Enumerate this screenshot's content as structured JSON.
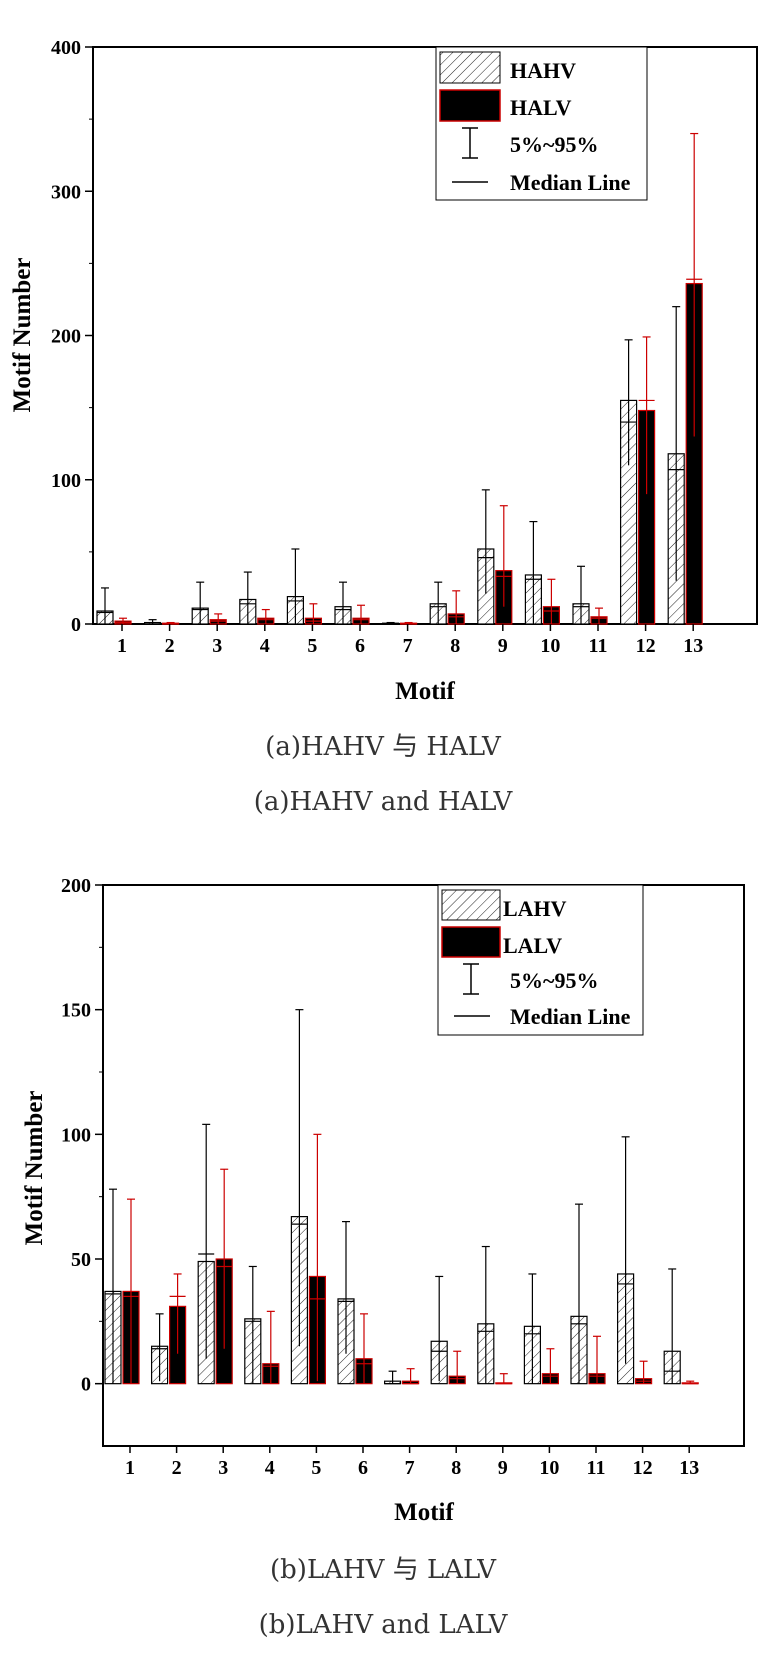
{
  "chart_data": [
    {
      "type": "bar",
      "xlabel": "Motif",
      "ylabel": "Motif Number",
      "ylim": [
        0,
        400
      ],
      "yticks": [
        0,
        100,
        200,
        300,
        400
      ],
      "categories": [
        "1",
        "2",
        "3",
        "4",
        "5",
        "6",
        "7",
        "8",
        "9",
        "10",
        "11",
        "12",
        "13"
      ],
      "series": [
        {
          "name": "HAHV",
          "style": "hatched",
          "color": "#000000",
          "values": [
            9,
            1,
            11,
            17,
            19,
            12,
            0,
            14,
            52,
            34,
            14,
            155,
            118
          ],
          "median": [
            8,
            1,
            10,
            14,
            16,
            10,
            0,
            12,
            46,
            31,
            12,
            140,
            107
          ],
          "p5": [
            0,
            0,
            0,
            0,
            0,
            0,
            0,
            0,
            21,
            0,
            0,
            110,
            30
          ],
          "p95": [
            25,
            3,
            29,
            36,
            52,
            29,
            1,
            29,
            93,
            71,
            40,
            197,
            220
          ]
        },
        {
          "name": "HALV",
          "style": "solid",
          "color": "#000000",
          "edge": "#cc0000",
          "values": [
            2,
            0,
            3,
            4,
            4,
            4,
            0,
            7,
            37,
            12,
            5,
            148,
            236
          ],
          "median": [
            1,
            0,
            2,
            3,
            2,
            3,
            0,
            5,
            33,
            9,
            4,
            155,
            239
          ],
          "p5": [
            0,
            0,
            0,
            0,
            0,
            0,
            0,
            0,
            12,
            0,
            0,
            90,
            130
          ],
          "p95": [
            4,
            1,
            7,
            10,
            14,
            13,
            1,
            23,
            82,
            31,
            11,
            199,
            340
          ]
        }
      ],
      "legend": {
        "placement": "top-right",
        "items": [
          "HAHV",
          "HALV",
          "5%~95%",
          "Median Line"
        ]
      },
      "caption_cn": "(a)HAHV 与 HALV",
      "caption_en": "(a)HAHV and HALV"
    },
    {
      "type": "bar",
      "xlabel": "Motif",
      "ylabel": "Motif Number",
      "ylim": [
        -25,
        200
      ],
      "yticks": [
        0,
        50,
        100,
        150,
        200
      ],
      "categories": [
        "1",
        "2",
        "3",
        "4",
        "5",
        "6",
        "7",
        "8",
        "9",
        "10",
        "11",
        "12",
        "13"
      ],
      "series": [
        {
          "name": "LAHV",
          "style": "hatched",
          "color": "#000000",
          "values": [
            37,
            15,
            49,
            26,
            67,
            34,
            1,
            17,
            24,
            23,
            27,
            44,
            13
          ],
          "median": [
            36,
            14,
            52,
            25,
            64,
            33,
            0,
            13,
            21,
            20,
            24,
            40,
            5
          ],
          "p5": [
            0,
            1,
            10,
            0,
            15,
            12,
            0,
            1,
            0,
            0,
            0,
            8,
            0
          ],
          "p95": [
            78,
            28,
            104,
            47,
            150,
            65,
            5,
            43,
            55,
            44,
            72,
            99,
            46
          ]
        },
        {
          "name": "LALV",
          "style": "solid",
          "color": "#000000",
          "edge": "#cc0000",
          "values": [
            37,
            31,
            50,
            8,
            43,
            10,
            1,
            3,
            0,
            4,
            4,
            2,
            0
          ],
          "median": [
            35,
            35,
            47,
            7,
            34,
            8,
            0,
            2,
            0,
            3,
            3,
            1,
            0
          ],
          "p5": [
            0,
            12,
            14,
            0,
            1,
            0,
            0,
            0,
            0,
            0,
            0,
            0,
            0
          ],
          "p95": [
            74,
            44,
            86,
            29,
            100,
            28,
            6,
            13,
            4,
            14,
            19,
            9,
            1
          ]
        }
      ],
      "legend": {
        "placement": "top-right",
        "items": [
          "LAHV",
          "LALV",
          "5%~95%",
          "Median Line"
        ]
      },
      "caption_cn": "(b)LAHV 与 LALV",
      "caption_en": "(b)LAHV and LALV"
    }
  ]
}
